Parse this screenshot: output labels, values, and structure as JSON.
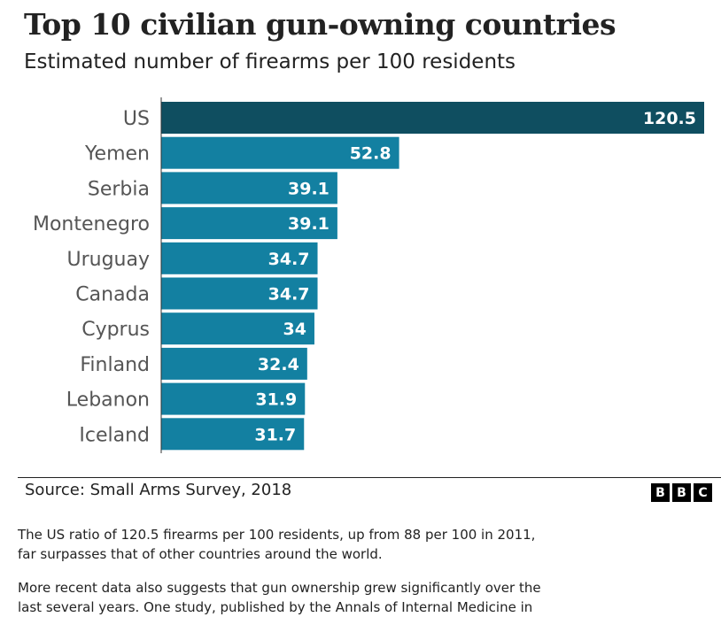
{
  "chart_data": {
    "type": "bar",
    "orientation": "horizontal",
    "title": "Top 10 civilian gun-owning countries",
    "subtitle": "Estimated number of firearms per 100 residents",
    "categories": [
      "US",
      "Yemen",
      "Serbia",
      "Montenegro",
      "Uruguay",
      "Canada",
      "Cyprus",
      "Finland",
      "Lebanon",
      "Iceland"
    ],
    "values": [
      120.5,
      52.8,
      39.1,
      39.1,
      34.7,
      34.7,
      34,
      32.4,
      31.9,
      31.7
    ],
    "value_labels": [
      "120.5",
      "52.8",
      "39.1",
      "39.1",
      "34.7",
      "34.7",
      "34",
      "32.4",
      "31.9",
      "31.7"
    ],
    "xlim": [
      0,
      120.5
    ],
    "grid": false,
    "colors": {
      "highlight": "#0f4e60",
      "default": "#1380a1"
    }
  },
  "source": "Source: Small Arms Survey, 2018",
  "logo": [
    "B",
    "B",
    "C"
  ],
  "paragraphs": [
    "The US ratio of 120.5 firearms per 100 residents, up from 88 per 100 in 2011, far surpasses that of other countries around the world.",
    "More recent data also suggests that gun ownership grew significantly over the last several years. One study, published by the Annals of Internal Medicine in"
  ]
}
